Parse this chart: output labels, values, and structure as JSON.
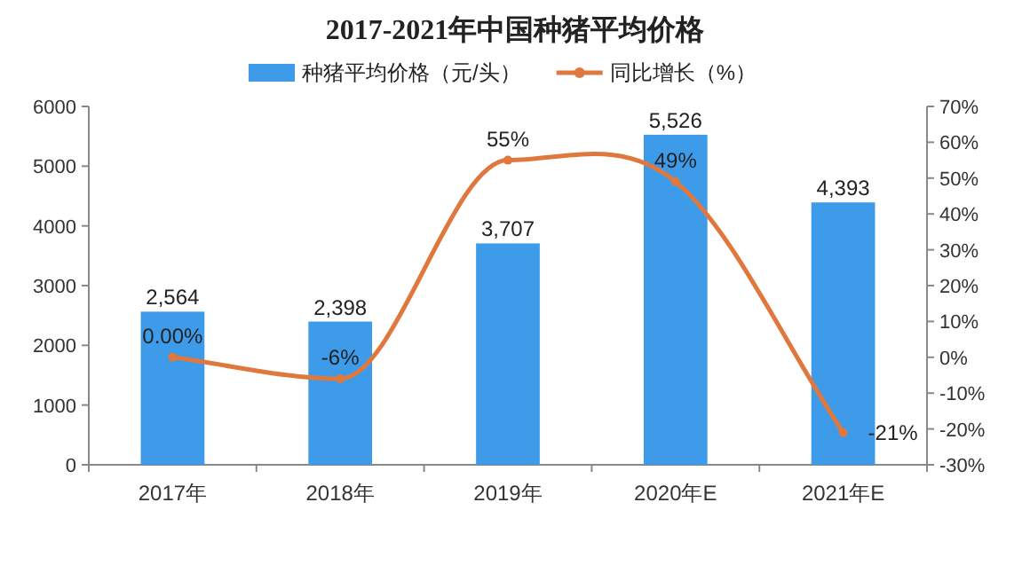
{
  "chart_data": {
    "type": "bar",
    "title": "2017-2021年中国种猪平均价格",
    "categories": [
      "2017年",
      "2018年",
      "2019年",
      "2020年E",
      "2021年E"
    ],
    "series": [
      {
        "name": "种猪平均价格（元/头）",
        "color": "#3d9be9",
        "values": [
          2564,
          2398,
          3707,
          5526,
          4393
        ],
        "value_labels": [
          "2,564",
          "2,398",
          "3,707",
          "5,526",
          "4,393"
        ]
      },
      {
        "name": "同比增长（%）",
        "type": "line",
        "axis": "y2",
        "color": "#e0783e",
        "marker": "circle",
        "values": [
          0,
          -6,
          55,
          49,
          -21
        ],
        "value_labels": [
          "0.00%",
          "-6%",
          "55%",
          "49%",
          "-21%"
        ]
      }
    ],
    "ylim": [
      0,
      6000
    ],
    "yticks": [
      0,
      1000,
      2000,
      3000,
      4000,
      5000,
      6000
    ],
    "y2lim": [
      -30,
      70
    ],
    "y2ticks": [
      {
        "value": -30,
        "label": "-30%"
      },
      {
        "value": -20,
        "label": "-20%"
      },
      {
        "value": -10,
        "label": "-10%"
      },
      {
        "value": 0,
        "label": "0%"
      },
      {
        "value": 10,
        "label": "10%"
      },
      {
        "value": 20,
        "label": "20%"
      },
      {
        "value": 30,
        "label": "30%"
      },
      {
        "value": 40,
        "label": "40%"
      },
      {
        "value": 50,
        "label": "50%"
      },
      {
        "value": 60,
        "label": "60%"
      },
      {
        "value": 70,
        "label": "70%"
      }
    ],
    "legend": "top",
    "grid": false
  }
}
